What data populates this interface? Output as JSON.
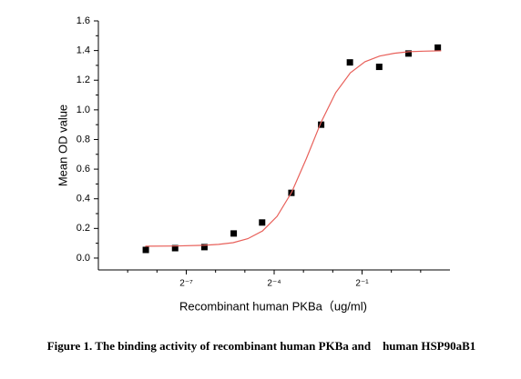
{
  "chart_data": {
    "type": "scatter",
    "x_label": "Recombinant human PKBa（ug/ml)",
    "y_label": "Mean OD value",
    "caption": "Figure 1. The binding activity of recombinant human PKBa and    human HSP90aB1",
    "xscale": "log2",
    "xlim": [
      0.0009765625,
      4
    ],
    "xticks": [
      {
        "value": 0.0078125,
        "label": "2⁻⁷"
      },
      {
        "value": 0.0625,
        "label": "2⁻⁴"
      },
      {
        "value": 0.5,
        "label": "2⁻¹"
      }
    ],
    "xminorticks": [
      0.001953125,
      0.00390625,
      0.015625,
      0.03125,
      0.125,
      0.25,
      1,
      2
    ],
    "ylim": [
      -0.08,
      1.6
    ],
    "yticks": [
      {
        "value": 0,
        "label": "0.0"
      },
      0.2,
      0.4,
      0.6,
      0.8,
      {
        "value": 1,
        "label": "1.0"
      },
      1.2,
      1.4,
      1.6
    ],
    "yminorticks": [
      0.1,
      0.3,
      0.5,
      0.7,
      0.9,
      1.1,
      1.3,
      1.5
    ],
    "series": [
      {
        "marker": "square",
        "color": "#000000",
        "x": [
          0.003,
          0.006,
          0.012,
          0.024,
          0.047,
          0.094,
          0.19,
          0.375,
          0.75,
          1.5,
          3
        ],
        "values": [
          0.055,
          0.067,
          0.074,
          0.166,
          0.24,
          0.44,
          0.9,
          1.32,
          1.29,
          1.38,
          1.42
        ]
      },
      {
        "line": true,
        "color": "#e8605a",
        "x": [
          0.00296,
          0.00592,
          0.01184,
          0.01675,
          0.02368,
          0.0335,
          0.0474,
          0.067,
          0.0947,
          0.134,
          0.189,
          0.268,
          0.379,
          0.536,
          0.758,
          1.072,
          1.516,
          2.144,
          3.249
        ],
        "values": [
          0.08,
          0.081,
          0.086,
          0.092,
          0.104,
          0.131,
          0.183,
          0.282,
          0.445,
          0.672,
          0.915,
          1.116,
          1.249,
          1.325,
          1.363,
          1.382,
          1.392,
          1.396,
          1.398
        ]
      }
    ]
  }
}
